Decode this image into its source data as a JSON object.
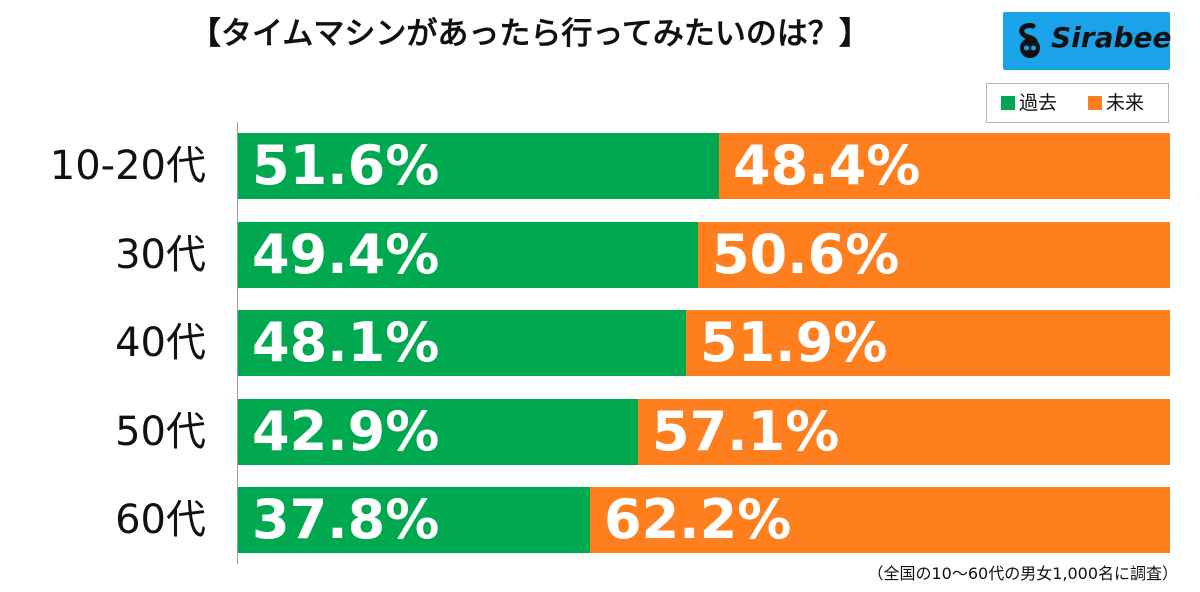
{
  "title": "【タイムマシンがあったら行ってみたいのは？】",
  "logo": {
    "text": "Sirabee",
    "icon": "sirabee-logo-icon"
  },
  "footnote": "（全国の10～60代の男女1,000名に調査）",
  "colors": {
    "past": "#00a84f",
    "future": "#ff7f1e",
    "logo_bg": "#1aa3e8"
  },
  "chart_data": {
    "type": "bar",
    "orientation": "horizontal",
    "stacked": true,
    "percent": true,
    "categories": [
      "10-20代",
      "30代",
      "40代",
      "50代",
      "60代"
    ],
    "series": [
      {
        "name": "過去",
        "color": "#00a84f",
        "values": [
          51.6,
          49.4,
          48.1,
          42.9,
          37.8
        ],
        "labels": [
          "51.6%",
          "49.4%",
          "48.1%",
          "42.9%",
          "37.8%"
        ]
      },
      {
        "name": "未来",
        "color": "#ff7f1e",
        "values": [
          48.4,
          50.6,
          51.9,
          57.1,
          62.2
        ],
        "labels": [
          "48.4%",
          "50.6%",
          "51.9%",
          "57.1%",
          "62.2%"
        ]
      }
    ],
    "xlim": [
      0,
      100
    ],
    "legend": "top-right",
    "grid": false
  }
}
